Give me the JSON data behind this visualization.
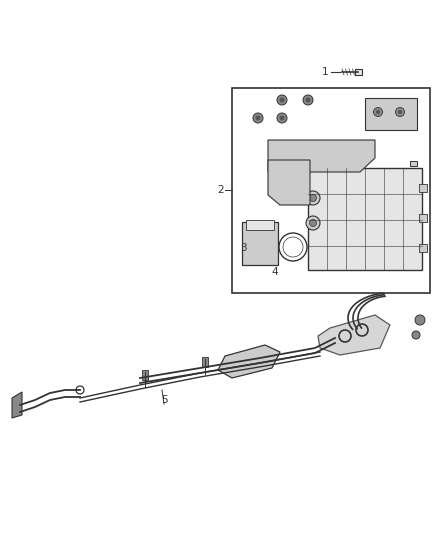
{
  "bg_color": "#ffffff",
  "fig_width": 4.38,
  "fig_height": 5.33,
  "dpi": 100,
  "line_color": "#333333",
  "dark_color": "#555555",
  "mid_color": "#888888",
  "light_color": "#cccccc",
  "very_light": "#e5e5e5"
}
